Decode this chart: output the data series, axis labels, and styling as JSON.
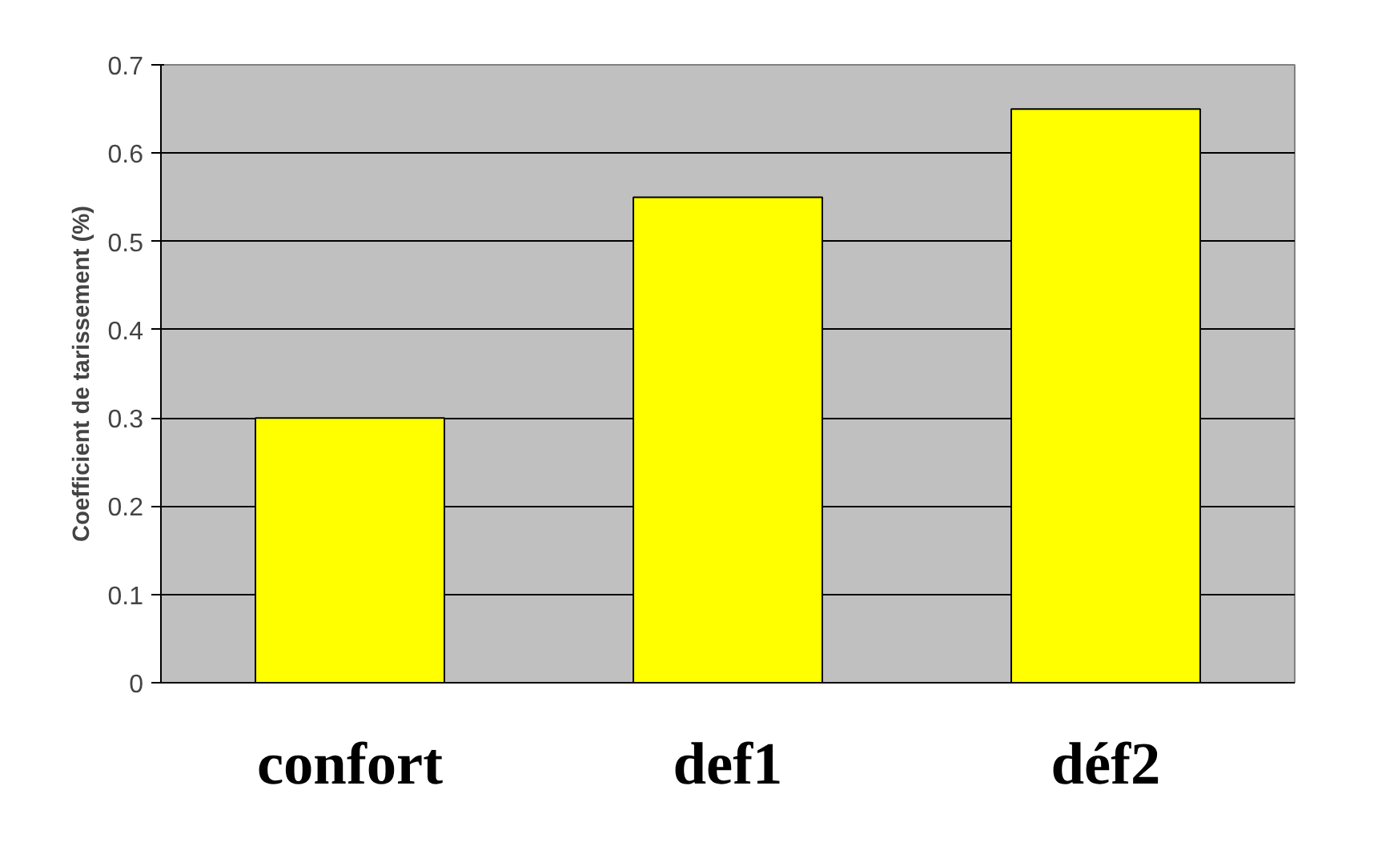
{
  "chart_data": {
    "type": "bar",
    "ylabel": "Coefficient de tarissement (%)",
    "categories": [
      "confort",
      "def1",
      "déf2"
    ],
    "values": [
      0.3,
      0.55,
      0.65
    ],
    "color": "#ffff00",
    "ylim": [
      0,
      0.7
    ],
    "yticks": [
      0,
      0.1,
      0.2,
      0.3,
      0.4,
      0.5,
      0.6,
      0.7
    ],
    "grid": "y"
  }
}
